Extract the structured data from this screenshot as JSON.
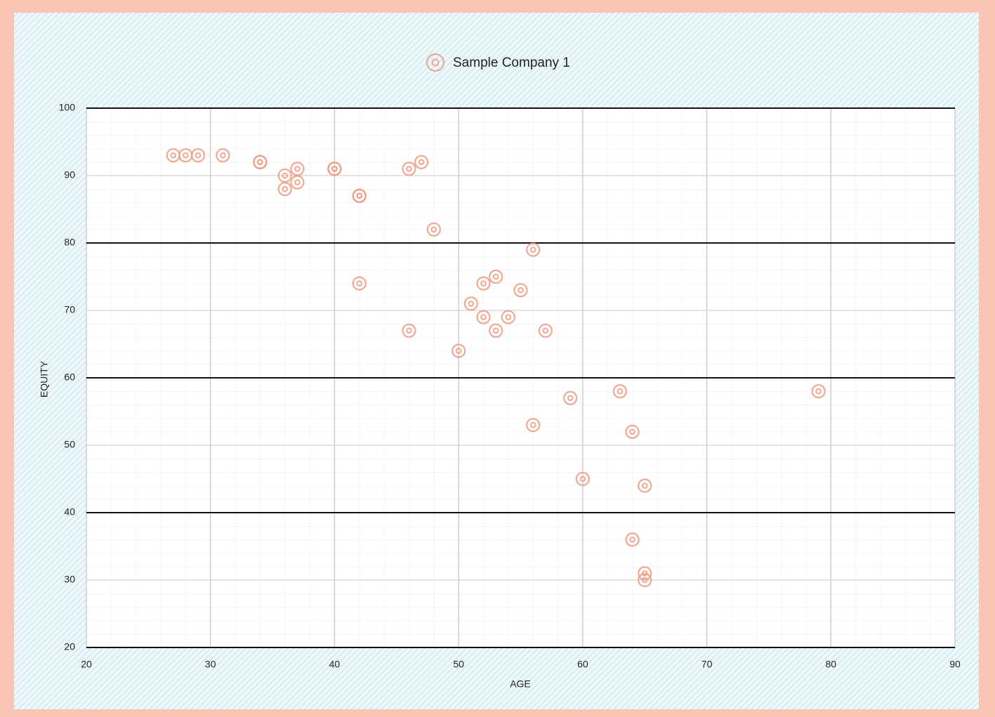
{
  "chart_data": {
    "type": "scatter",
    "x_label": "AGE",
    "y_label": "EQUITY",
    "series": [
      {
        "name": "Sample Company 1",
        "color": "#ee9a80",
        "x": [
          27,
          28,
          29,
          31,
          34,
          34,
          36,
          36,
          37,
          37,
          40,
          40,
          42,
          42,
          46,
          47,
          48,
          56,
          42,
          53,
          52,
          55,
          51,
          52,
          54,
          46,
          53,
          57,
          50,
          63,
          79,
          59,
          56,
          64,
          60,
          65,
          64,
          65,
          65
        ],
        "values": [
          93,
          93,
          93,
          93,
          92,
          92,
          90,
          88,
          91,
          89,
          91,
          91,
          87,
          87,
          91,
          92,
          82,
          79,
          74,
          75,
          74,
          73,
          71,
          69,
          69,
          67,
          67,
          67,
          64,
          58,
          58,
          57,
          53,
          52,
          45,
          44,
          36,
          31,
          30
        ]
      }
    ],
    "xlim": [
      20,
      90
    ],
    "xticks": [
      20,
      30,
      40,
      50,
      60,
      70,
      80,
      90
    ],
    "ylim": [
      20,
      100
    ],
    "yticks": [
      20,
      30,
      40,
      50,
      60,
      70,
      80,
      90,
      100
    ],
    "grid": true,
    "legend": "top"
  }
}
